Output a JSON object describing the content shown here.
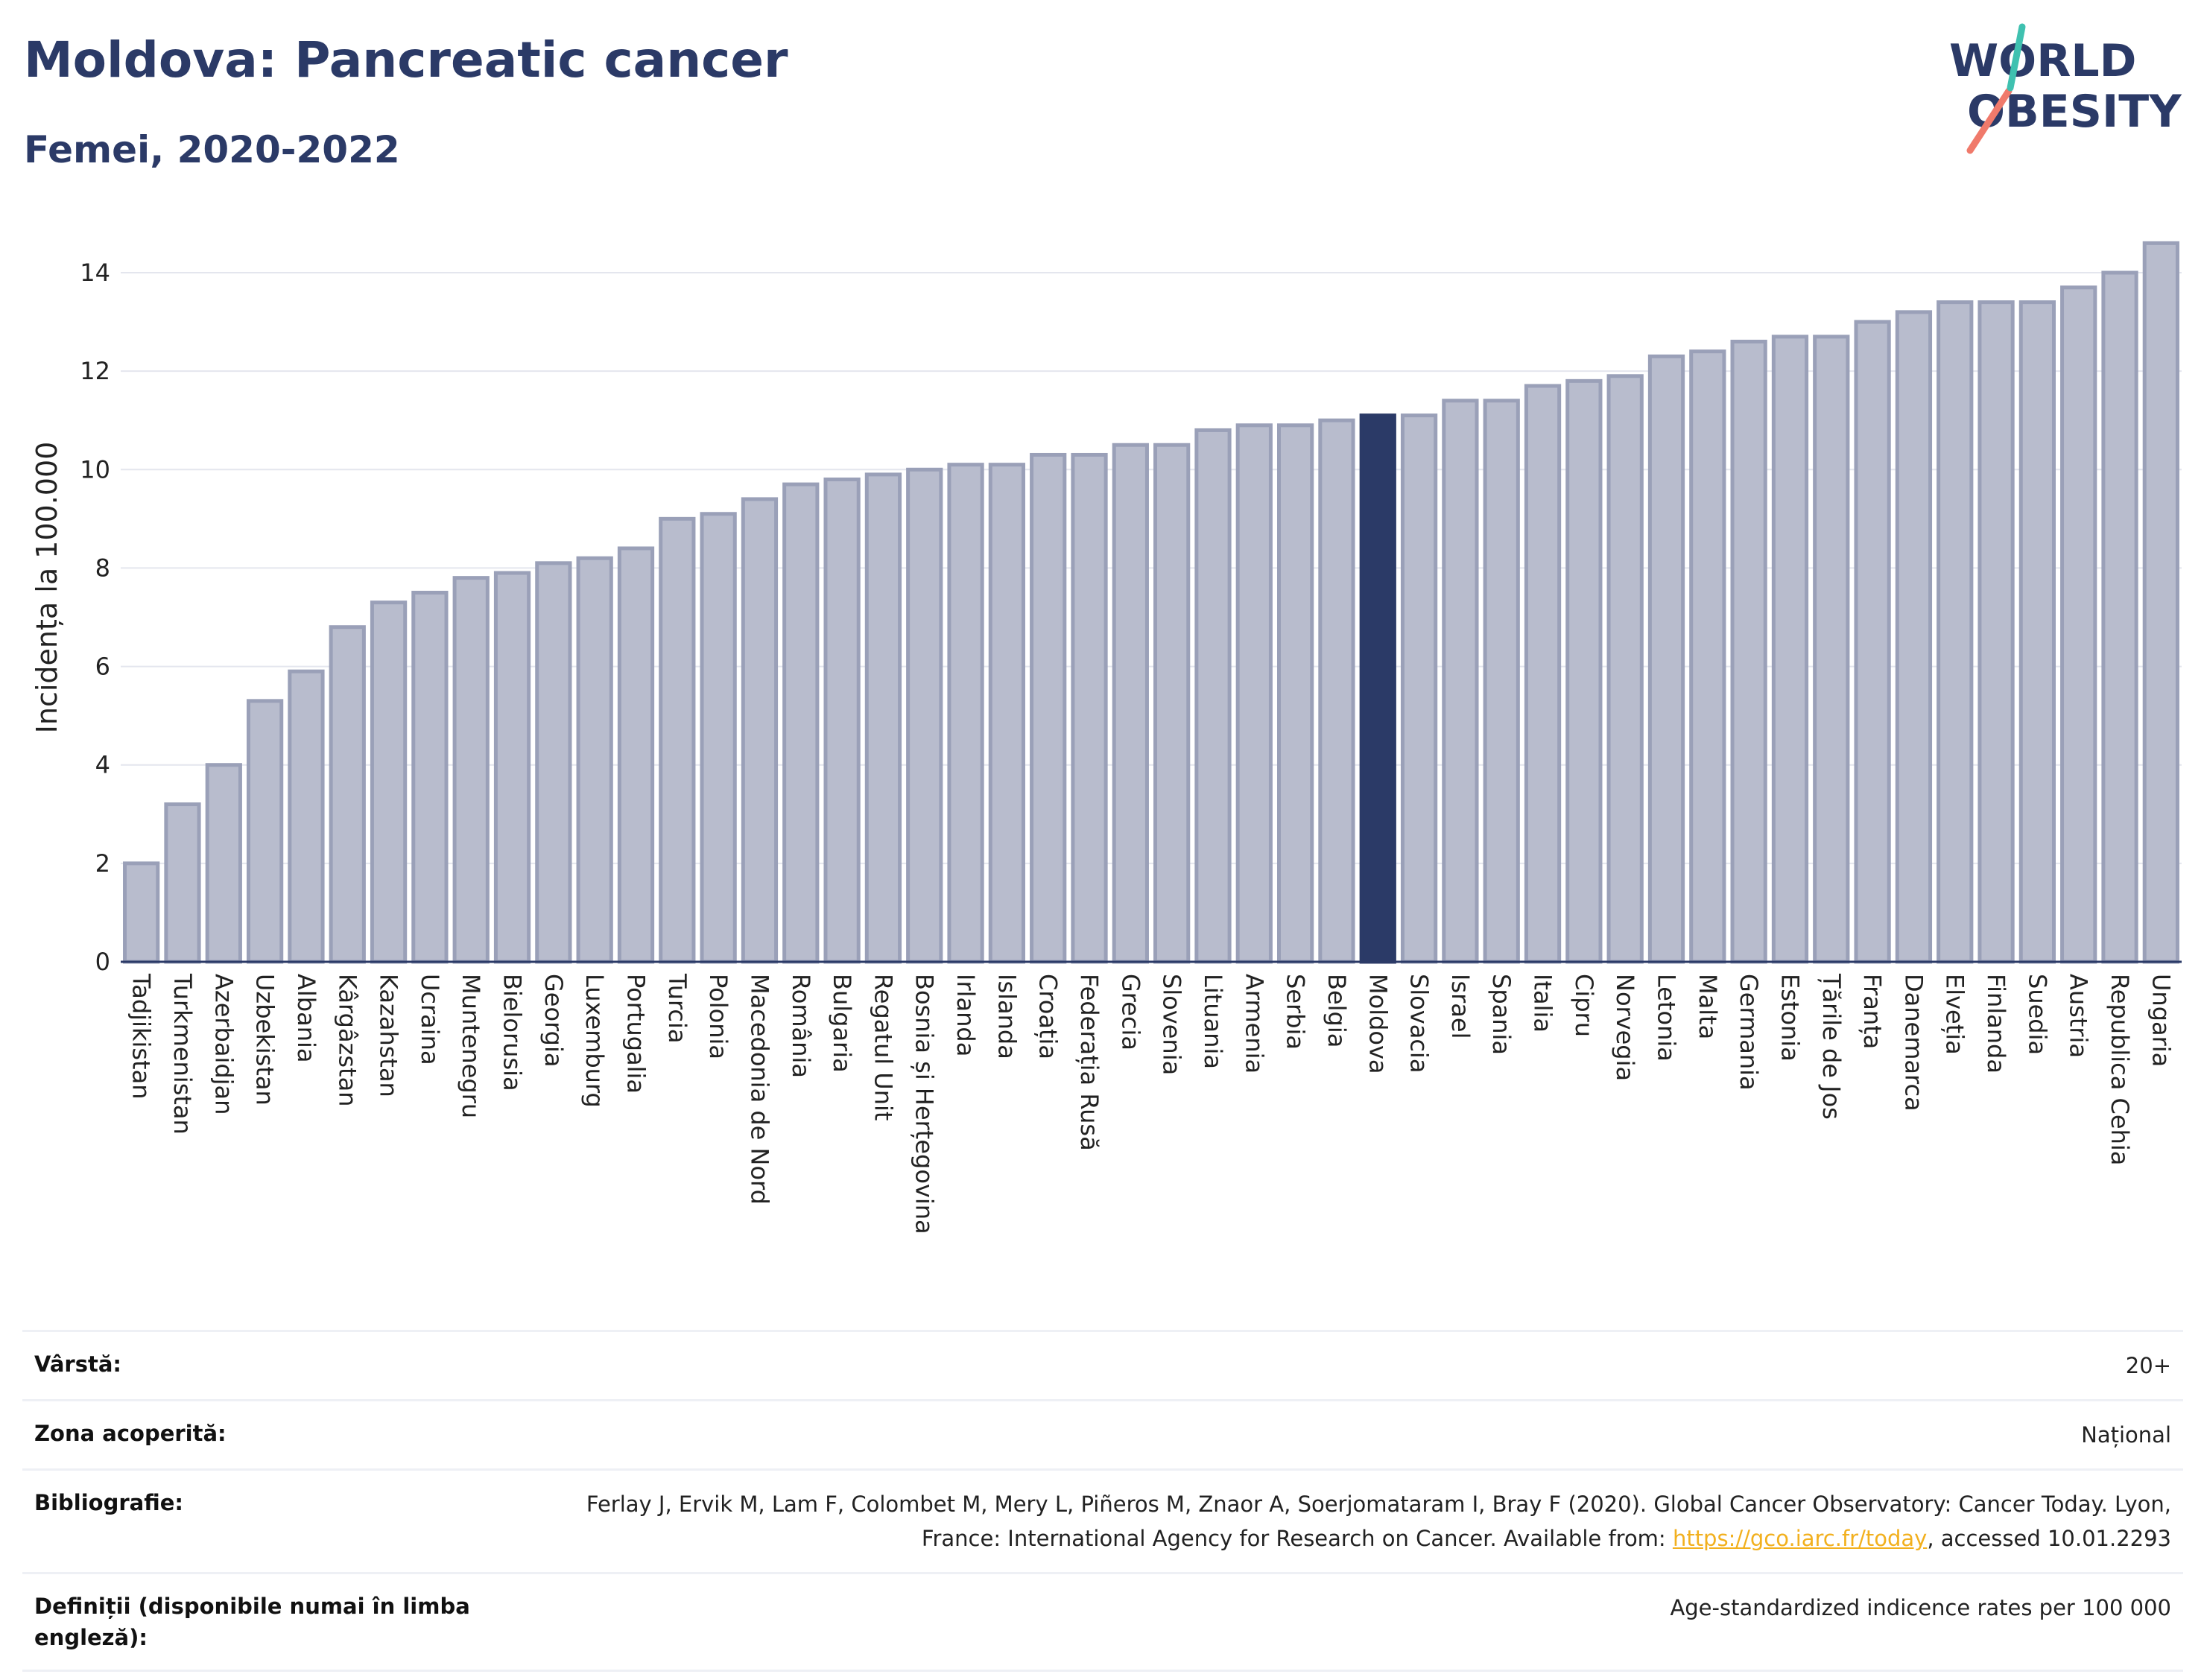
{
  "header": {
    "title": "Moldova: Pancreatic cancer",
    "subtitle": "Femei, 2020-2022"
  },
  "logo": {
    "line1": "WORLD",
    "line2": "OBESITY",
    "accent_color": "#f07a6b",
    "accent_color_2": "#3fc1b0"
  },
  "colors": {
    "bar": "#b8bccd",
    "bar_stroke": "#9aa0b8",
    "highlight": "#2b3a67",
    "axis": "#2b3a67"
  },
  "chart_data": {
    "type": "bar",
    "ylabel": "Incidența la 100.000",
    "xlabel": "",
    "ylim": [
      0,
      15
    ],
    "yticks": [
      0,
      2,
      4,
      6,
      8,
      10,
      12,
      14
    ],
    "grid": true,
    "highlight": "Moldova",
    "categories": [
      "Tadjikistan",
      "Turkmenistan",
      "Azerbaidjan",
      "Uzbekistan",
      "Albania",
      "Kârgâzstan",
      "Kazahstan",
      "Ucraina",
      "Muntenegru",
      "Bielorusia",
      "Georgia",
      "Luxemburg",
      "Portugalia",
      "Turcia",
      "Polonia",
      "Macedonia de Nord",
      "România",
      "Bulgaria",
      "Regatul Unit",
      "Bosnia și Herțegovina",
      "Irlanda",
      "Islanda",
      "Croația",
      "Federația Rusă",
      "Grecia",
      "Slovenia",
      "Lituania",
      "Armenia",
      "Serbia",
      "Belgia",
      "Moldova",
      "Slovacia",
      "Israel",
      "Spania",
      "Italia",
      "Cipru",
      "Norvegia",
      "Letonia",
      "Malta",
      "Germania",
      "Estonia",
      "Țările de Jos",
      "Franța",
      "Danemarca",
      "Elveția",
      "Finlanda",
      "Suedia",
      "Austria",
      "Republica Cehia",
      "Ungaria"
    ],
    "values": [
      2.0,
      3.2,
      4.0,
      5.3,
      5.9,
      6.8,
      7.3,
      7.5,
      7.8,
      7.9,
      8.1,
      8.2,
      8.4,
      9.0,
      9.1,
      9.4,
      9.7,
      9.8,
      9.9,
      10.0,
      10.1,
      10.1,
      10.3,
      10.3,
      10.5,
      10.5,
      10.8,
      10.9,
      10.9,
      11.0,
      11.1,
      11.1,
      11.4,
      11.4,
      11.7,
      11.8,
      11.9,
      12.3,
      12.4,
      12.6,
      12.7,
      12.7,
      13.0,
      13.2,
      13.4,
      13.4,
      13.4,
      13.7,
      14.0,
      14.6
    ]
  },
  "info": [
    {
      "label": "Vârstă:",
      "value": "20+"
    },
    {
      "label": "Zona acoperită:",
      "value": "Național"
    },
    {
      "label": "Bibliografie:",
      "value_pre": "Ferlay J, Ervik M, Lam F, Colombet M, Mery L, Piñeros M, Znaor A, Soerjomataram I, Bray F (2020). Global Cancer Observatory: Cancer Today. Lyon, France: International Agency for Research on Cancer. Available from: ",
      "link": "https://gco.iarc.fr/today",
      "value_post": ", accessed 10.01.2293"
    },
    {
      "label": "Definiții (disponibile numai în limba engleză):",
      "value": "Age-standardized indicence rates per 100 000"
    }
  ]
}
